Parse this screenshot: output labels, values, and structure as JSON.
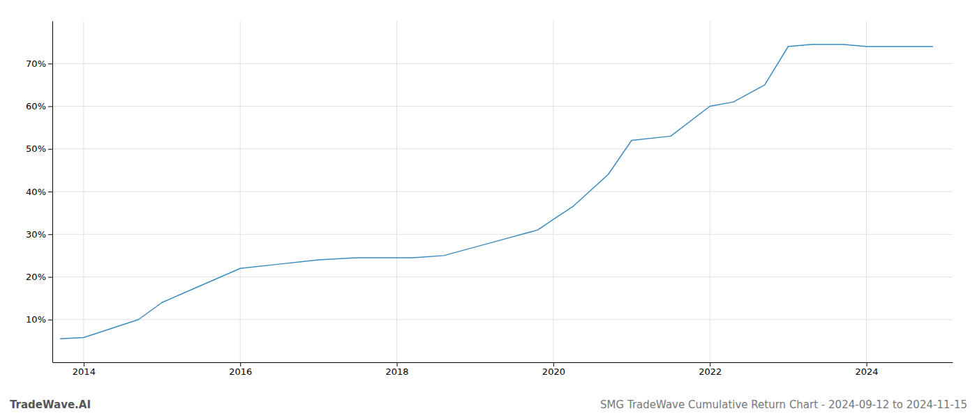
{
  "chart_data": {
    "type": "line",
    "title": "SMG TradeWave Cumulative Return Chart - 2024-09-12 to 2024-11-15",
    "annotations": [
      "TradeWave.AI"
    ],
    "x": [
      2013.7,
      2014.0,
      2014.7,
      2015.0,
      2015.5,
      2016.0,
      2016.5,
      2017.0,
      2017.5,
      2018.0,
      2018.2,
      2018.6,
      2019.0,
      2019.4,
      2019.8,
      2020.0,
      2020.25,
      2020.7,
      2021.0,
      2021.5,
      2022.0,
      2022.3,
      2022.7,
      2023.0,
      2023.3,
      2023.7,
      2024.0,
      2024.5,
      2024.85
    ],
    "values": [
      5.5,
      5.8,
      10.0,
      14.0,
      18.0,
      22.0,
      23.0,
      24.0,
      24.5,
      24.5,
      24.5,
      25.0,
      27.0,
      29.0,
      31.0,
      33.5,
      36.5,
      44.0,
      52.0,
      53.0,
      60.0,
      61.0,
      65.0,
      74.0,
      74.5,
      74.5,
      74.0,
      74.0,
      74.0
    ],
    "color": "#3a8bbf",
    "xlim": [
      2013.6,
      2025.1
    ],
    "ylim": [
      0,
      80
    ],
    "xticks": [
      2014,
      2016,
      2018,
      2020,
      2022,
      2024
    ],
    "yticks": [
      {
        "value": 10,
        "label": "10%"
      },
      {
        "value": 20,
        "label": "20%"
      },
      {
        "value": 30,
        "label": "30%"
      },
      {
        "value": 40,
        "label": "40%"
      },
      {
        "value": 50,
        "label": "50%"
      },
      {
        "value": 60,
        "label": "60%"
      },
      {
        "value": 70,
        "label": "70%"
      }
    ],
    "grid": true
  }
}
